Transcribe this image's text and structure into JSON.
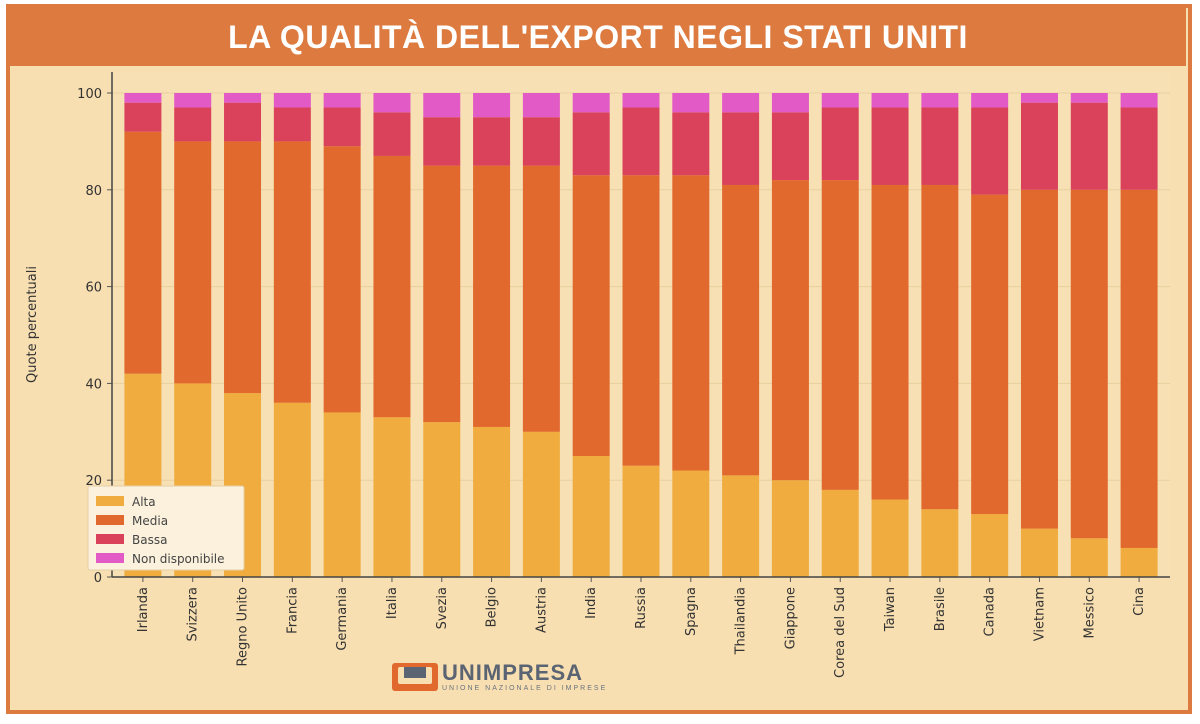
{
  "header": {
    "title": "LA QUALITÀ DELL'EXPORT NEGLI STATI UNITI"
  },
  "logo": {
    "name": "UNIMPRESA",
    "subtitle": "UNIONE NAZIONALE DI IMPRESE"
  },
  "colors": {
    "Alta": "#f0ac3e",
    "Media": "#e2692e",
    "Bassa": "#d9425a",
    "Non disponibile": "#e25ac6",
    "background": "#f8dfb1",
    "border": "#dc7a3f"
  },
  "chart_data": {
    "type": "bar",
    "stacked": true,
    "title": "",
    "xlabel": "",
    "ylabel": "Quote percentuali",
    "ylim": [
      0,
      100
    ],
    "yticks": [
      0,
      20,
      40,
      60,
      80,
      100
    ],
    "grid": true,
    "legend_position": "bottom-left",
    "categories": [
      "Irlanda",
      "Svizzera",
      "Regno Unito",
      "Francia",
      "Germania",
      "Italia",
      "Svezia",
      "Belgio",
      "Austria",
      "India",
      "Russia",
      "Spagna",
      "Thailandia",
      "Giappone",
      "Corea del Sud",
      "Taiwan",
      "Brasile",
      "Canada",
      "Vietnam",
      "Messico",
      "Cina"
    ],
    "series": [
      {
        "name": "Alta",
        "values": [
          42,
          40,
          38,
          36,
          34,
          33,
          32,
          31,
          30,
          25,
          23,
          22,
          21,
          20,
          18,
          16,
          14,
          13,
          10,
          8,
          6
        ]
      },
      {
        "name": "Media",
        "values": [
          50,
          50,
          52,
          54,
          55,
          54,
          53,
          54,
          55,
          58,
          60,
          61,
          60,
          62,
          64,
          65,
          67,
          66,
          70,
          72,
          74
        ]
      },
      {
        "name": "Bassa",
        "values": [
          6,
          7,
          8,
          7,
          8,
          9,
          10,
          10,
          10,
          13,
          14,
          13,
          15,
          14,
          15,
          16,
          16,
          18,
          18,
          18,
          17
        ]
      },
      {
        "name": "Non disponibile",
        "values": [
          2,
          3,
          2,
          3,
          3,
          4,
          5,
          5,
          5,
          4,
          3,
          4,
          4,
          4,
          3,
          3,
          3,
          3,
          2,
          2,
          3
        ]
      }
    ]
  }
}
